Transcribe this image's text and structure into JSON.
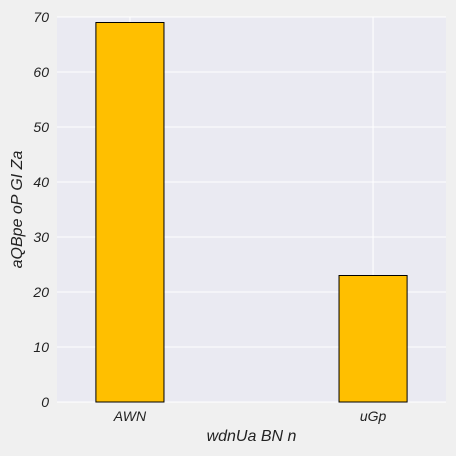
{
  "chart_data": {
    "type": "bar",
    "categories": [
      "AWN",
      "uGp"
    ],
    "values": [
      69,
      23
    ],
    "title": "",
    "xlabel": "wdnUa BN n",
    "ylabel": "aQBpe oP GI Za",
    "ylim": [
      0,
      70
    ],
    "yticks": [
      0,
      10,
      20,
      30,
      40,
      50,
      60,
      70
    ],
    "grid": true,
    "bar_color": "#ffbf00",
    "bar_edge_color": "#000000",
    "plot_background": "#eaeaf2",
    "page_background": "#f0f0f0",
    "grid_color": "#ffffff"
  }
}
